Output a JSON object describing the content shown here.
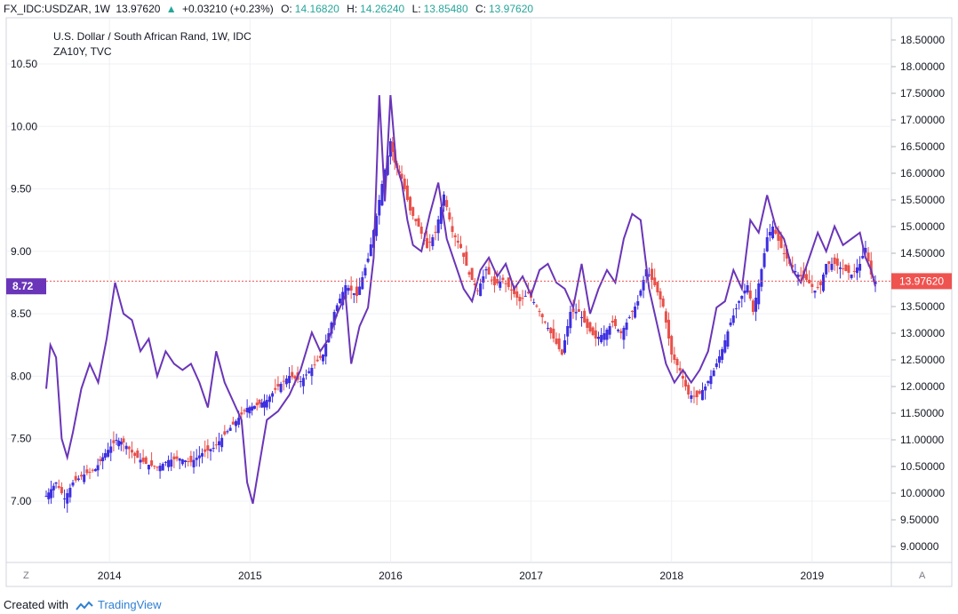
{
  "header": {
    "symbol": "FX_IDC:USDZAR, 1W",
    "price": "13.97620",
    "change_arrow": "▲",
    "change": "+0.03210 (+0.23%)",
    "o_label": "O:",
    "o_value": "14.16820",
    "h_label": "H:",
    "h_value": "14.26240",
    "l_label": "L:",
    "l_value": "13.85480",
    "c_label": "C:",
    "c_value": "13.97620"
  },
  "legend": {
    "series1": "U.S. Dollar / South African Rand, 1W, IDC",
    "series2": "ZA10Y, TVC"
  },
  "badges": {
    "left": "8.72",
    "right": "13.97620"
  },
  "corner": {
    "left": "Z",
    "right": "A"
  },
  "footer": {
    "prefix": "Created with",
    "brand": "TradingView"
  },
  "colors": {
    "up": "#3d2fe0",
    "down": "#e8504a",
    "line": "#6a35b8",
    "grid": "#e6e9ef",
    "badge_left": "#6a35b8",
    "badge_right": "#ef5350"
  },
  "chart_data": {
    "type": "line",
    "x_ticks": [
      "2014",
      "2015",
      "2016",
      "2017",
      "2018",
      "2019"
    ],
    "left_axis": {
      "ticks": [
        "7.00",
        "7.50",
        "8.00",
        "8.50",
        "9.00",
        "9.50",
        "10.00",
        "10.50"
      ],
      "range": [
        6.58,
        10.85
      ]
    },
    "right_axis": {
      "ticks": [
        "9.00000",
        "9.50000",
        "10.00000",
        "10.50000",
        "11.00000",
        "11.50000",
        "12.00000",
        "12.50000",
        "13.00000",
        "13.50000",
        "14.00000",
        "14.50000",
        "15.00000",
        "15.50000",
        "16.00000",
        "16.50000",
        "17.00000",
        "17.50000",
        "18.00000",
        "18.50000"
      ],
      "range": [
        8.85,
        18.7
      ]
    },
    "x_range": [
      2013.55,
      2019.45
    ],
    "grid": true,
    "series": [
      {
        "name": "U.S. Dollar / South African Rand, 1W, IDC",
        "axis": "right",
        "style": "candles",
        "points": [
          [
            2013.55,
            9.95
          ],
          [
            2013.62,
            10.2
          ],
          [
            2013.68,
            9.9
          ],
          [
            2013.74,
            10.2
          ],
          [
            2013.82,
            10.35
          ],
          [
            2013.9,
            10.45
          ],
          [
            2013.97,
            10.75
          ],
          [
            2014.05,
            11.0
          ],
          [
            2014.1,
            10.95
          ],
          [
            2014.18,
            10.7
          ],
          [
            2014.26,
            10.55
          ],
          [
            2014.34,
            10.48
          ],
          [
            2014.42,
            10.62
          ],
          [
            2014.5,
            10.65
          ],
          [
            2014.58,
            10.58
          ],
          [
            2014.66,
            10.75
          ],
          [
            2014.74,
            10.85
          ],
          [
            2014.82,
            11.1
          ],
          [
            2014.9,
            11.35
          ],
          [
            2014.98,
            11.6
          ],
          [
            2015.05,
            11.65
          ],
          [
            2015.12,
            11.75
          ],
          [
            2015.2,
            12.0
          ],
          [
            2015.28,
            12.2
          ],
          [
            2015.36,
            12.1
          ],
          [
            2015.44,
            12.35
          ],
          [
            2015.52,
            12.6
          ],
          [
            2015.6,
            13.4
          ],
          [
            2015.68,
            13.9
          ],
          [
            2015.76,
            13.7
          ],
          [
            2015.84,
            14.4
          ],
          [
            2015.9,
            15.2
          ],
          [
            2015.94,
            15.8
          ],
          [
            2016.0,
            16.6
          ],
          [
            2016.03,
            16.2
          ],
          [
            2016.08,
            15.9
          ],
          [
            2016.14,
            15.3
          ],
          [
            2016.2,
            15.0
          ],
          [
            2016.26,
            14.6
          ],
          [
            2016.32,
            14.9
          ],
          [
            2016.38,
            15.6
          ],
          [
            2016.44,
            14.9
          ],
          [
            2016.5,
            14.6
          ],
          [
            2016.56,
            14.1
          ],
          [
            2016.62,
            13.8
          ],
          [
            2016.68,
            14.2
          ],
          [
            2016.74,
            13.9
          ],
          [
            2016.8,
            14.0
          ],
          [
            2016.86,
            13.8
          ],
          [
            2016.92,
            13.6
          ],
          [
            2016.98,
            13.75
          ],
          [
            2017.04,
            13.5
          ],
          [
            2017.1,
            13.2
          ],
          [
            2017.16,
            12.9
          ],
          [
            2017.22,
            12.6
          ],
          [
            2017.28,
            13.4
          ],
          [
            2017.34,
            13.4
          ],
          [
            2017.4,
            13.1
          ],
          [
            2017.46,
            12.9
          ],
          [
            2017.52,
            13.0
          ],
          [
            2017.58,
            13.2
          ],
          [
            2017.64,
            13.0
          ],
          [
            2017.7,
            13.3
          ],
          [
            2017.76,
            13.6
          ],
          [
            2017.82,
            14.2
          ],
          [
            2017.88,
            13.9
          ],
          [
            2017.94,
            13.5
          ],
          [
            2018.0,
            12.6
          ],
          [
            2018.06,
            12.3
          ],
          [
            2018.12,
            11.85
          ],
          [
            2018.18,
            11.8
          ],
          [
            2018.24,
            12.0
          ],
          [
            2018.3,
            12.3
          ],
          [
            2018.36,
            12.7
          ],
          [
            2018.42,
            13.2
          ],
          [
            2018.48,
            13.6
          ],
          [
            2018.54,
            13.9
          ],
          [
            2018.58,
            13.4
          ],
          [
            2018.64,
            14.2
          ],
          [
            2018.68,
            14.8
          ],
          [
            2018.72,
            15.0
          ],
          [
            2018.78,
            14.6
          ],
          [
            2018.84,
            14.3
          ],
          [
            2018.9,
            14.1
          ],
          [
            2018.96,
            14.0
          ],
          [
            2019.02,
            13.8
          ],
          [
            2019.06,
            13.9
          ],
          [
            2019.1,
            14.3
          ],
          [
            2019.16,
            14.3
          ],
          [
            2019.22,
            14.2
          ],
          [
            2019.28,
            14.1
          ],
          [
            2019.34,
            14.3
          ],
          [
            2019.38,
            14.6
          ],
          [
            2019.42,
            14.1
          ],
          [
            2019.45,
            13.98
          ]
        ]
      },
      {
        "name": "ZA10Y, TVC",
        "axis": "left",
        "style": "line",
        "points": [
          [
            2013.55,
            7.9
          ],
          [
            2013.58,
            8.25
          ],
          [
            2013.62,
            8.15
          ],
          [
            2013.66,
            7.5
          ],
          [
            2013.7,
            7.35
          ],
          [
            2013.74,
            7.55
          ],
          [
            2013.8,
            7.9
          ],
          [
            2013.86,
            8.1
          ],
          [
            2013.92,
            7.95
          ],
          [
            2013.98,
            8.3
          ],
          [
            2014.04,
            8.75
          ],
          [
            2014.1,
            8.5
          ],
          [
            2014.16,
            8.45
          ],
          [
            2014.22,
            8.2
          ],
          [
            2014.28,
            8.3
          ],
          [
            2014.34,
            8.0
          ],
          [
            2014.4,
            8.2
          ],
          [
            2014.46,
            8.1
          ],
          [
            2014.52,
            8.05
          ],
          [
            2014.58,
            8.1
          ],
          [
            2014.64,
            7.95
          ],
          [
            2014.7,
            7.75
          ],
          [
            2014.76,
            8.2
          ],
          [
            2014.82,
            7.95
          ],
          [
            2014.88,
            7.8
          ],
          [
            2014.94,
            7.65
          ],
          [
            2014.98,
            7.15
          ],
          [
            2015.02,
            6.98
          ],
          [
            2015.06,
            7.25
          ],
          [
            2015.12,
            7.65
          ],
          [
            2015.2,
            7.72
          ],
          [
            2015.28,
            7.85
          ],
          [
            2015.36,
            8.05
          ],
          [
            2015.44,
            8.35
          ],
          [
            2015.5,
            8.2
          ],
          [
            2015.56,
            8.3
          ],
          [
            2015.62,
            8.5
          ],
          [
            2015.68,
            8.65
          ],
          [
            2015.72,
            8.1
          ],
          [
            2015.78,
            8.4
          ],
          [
            2015.84,
            8.55
          ],
          [
            2015.88,
            8.95
          ],
          [
            2015.92,
            10.25
          ],
          [
            2015.96,
            9.4
          ],
          [
            2016.0,
            10.25
          ],
          [
            2016.04,
            9.7
          ],
          [
            2016.08,
            9.55
          ],
          [
            2016.12,
            9.25
          ],
          [
            2016.16,
            9.05
          ],
          [
            2016.22,
            9.0
          ],
          [
            2016.28,
            9.3
          ],
          [
            2016.34,
            9.55
          ],
          [
            2016.4,
            9.1
          ],
          [
            2016.46,
            8.9
          ],
          [
            2016.52,
            8.7
          ],
          [
            2016.58,
            8.6
          ],
          [
            2016.64,
            8.85
          ],
          [
            2016.7,
            8.95
          ],
          [
            2016.76,
            8.8
          ],
          [
            2016.82,
            8.9
          ],
          [
            2016.88,
            8.7
          ],
          [
            2016.94,
            8.8
          ],
          [
            2017.0,
            8.65
          ],
          [
            2017.06,
            8.85
          ],
          [
            2017.12,
            8.9
          ],
          [
            2017.18,
            8.75
          ],
          [
            2017.24,
            8.7
          ],
          [
            2017.3,
            8.55
          ],
          [
            2017.36,
            8.9
          ],
          [
            2017.42,
            8.5
          ],
          [
            2017.48,
            8.7
          ],
          [
            2017.54,
            8.85
          ],
          [
            2017.6,
            8.75
          ],
          [
            2017.66,
            9.1
          ],
          [
            2017.72,
            9.3
          ],
          [
            2017.78,
            9.25
          ],
          [
            2017.84,
            8.7
          ],
          [
            2017.9,
            8.4
          ],
          [
            2017.96,
            8.1
          ],
          [
            2018.02,
            7.95
          ],
          [
            2018.08,
            8.05
          ],
          [
            2018.14,
            7.95
          ],
          [
            2018.2,
            8.05
          ],
          [
            2018.26,
            8.2
          ],
          [
            2018.32,
            8.55
          ],
          [
            2018.38,
            8.6
          ],
          [
            2018.44,
            8.85
          ],
          [
            2018.5,
            8.7
          ],
          [
            2018.56,
            9.25
          ],
          [
            2018.62,
            9.15
          ],
          [
            2018.68,
            9.45
          ],
          [
            2018.74,
            9.2
          ],
          [
            2018.8,
            9.1
          ],
          [
            2018.86,
            8.85
          ],
          [
            2018.92,
            8.75
          ],
          [
            2018.98,
            8.95
          ],
          [
            2019.04,
            9.15
          ],
          [
            2019.1,
            9.0
          ],
          [
            2019.16,
            9.2
          ],
          [
            2019.22,
            9.05
          ],
          [
            2019.28,
            9.1
          ],
          [
            2019.34,
            9.15
          ],
          [
            2019.38,
            8.95
          ],
          [
            2019.42,
            8.85
          ],
          [
            2019.45,
            8.72
          ]
        ]
      }
    ]
  }
}
